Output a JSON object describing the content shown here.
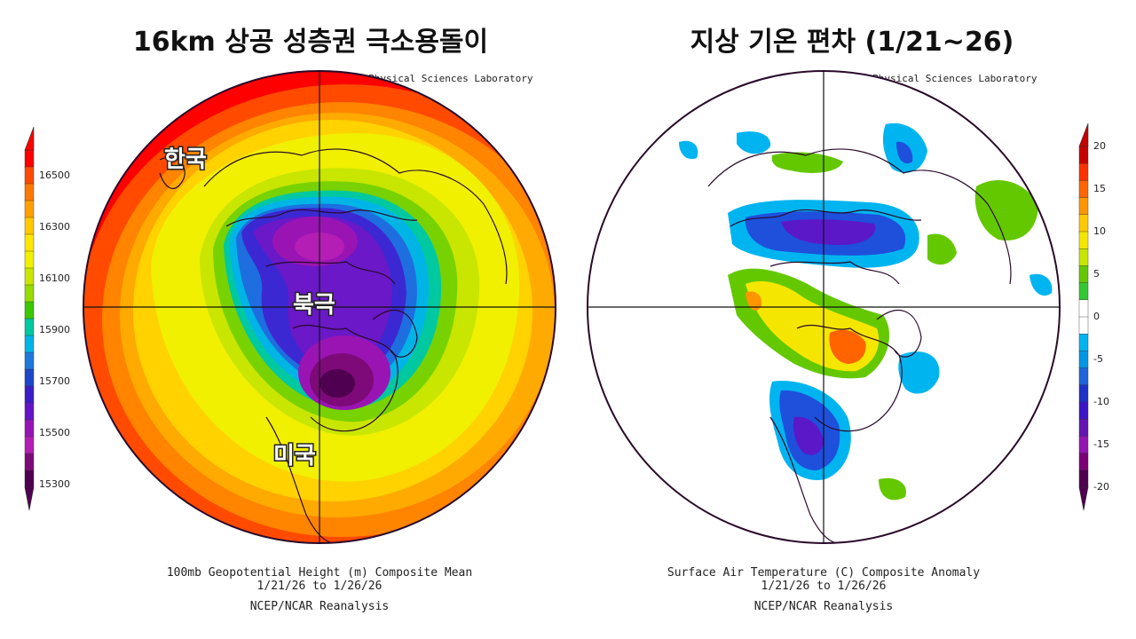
{
  "left_panel": {
    "title": "16km 상공 성층권 극소용돌이",
    "credit": "NOAA Physical Sciences Laboratory",
    "labels": {
      "korea": "한국",
      "arctic": "북극",
      "usa": "미국"
    },
    "colorbar_ticks": [
      "16500",
      "16300",
      "16100",
      "15900",
      "15700",
      "15500",
      "15300"
    ],
    "caption": {
      "line1": "100mb Geopotential Height (m) Composite Mean",
      "line2": "1/21/26  to 1/26/26",
      "line3": "NCEP/NCAR Reanalysis"
    }
  },
  "right_panel": {
    "title": "지상 기온 편차 (1/21~26)",
    "credit": "NOAA Physical Sciences Laboratory",
    "colorbar_ticks": [
      "20",
      "15",
      "10",
      "5",
      "0",
      "-5",
      "-10",
      "-15",
      "-20"
    ],
    "caption": {
      "line1": "Surface Air Temperature (C) Composite Anomaly",
      "line2": "1/21/26  to 1/26/26",
      "line3": "NCEP/NCAR Reanalysis"
    }
  },
  "colors": {
    "height_scale": [
      "#ff0000",
      "#ff4a00",
      "#ff7800",
      "#ffa000",
      "#ffc800",
      "#ffe600",
      "#f0f000",
      "#c8e600",
      "#96dc00",
      "#3cc800",
      "#00c8a0",
      "#00b4e6",
      "#1e78dc",
      "#1e46c8",
      "#3c1ec8",
      "#6414c8",
      "#9614b4",
      "#b41eb4",
      "#7d0a78",
      "#500050"
    ],
    "anomaly_scale": [
      "#c80000",
      "#ff3200",
      "#ff6400",
      "#ff9600",
      "#ffc800",
      "#f5e600",
      "#c8e600",
      "#64c800",
      "#32c832",
      "#ffffff",
      "#ffffff",
      "#00b4f0",
      "#0096e6",
      "#1e64dc",
      "#1e32c8",
      "#3c14c8",
      "#6414b4",
      "#9614b4",
      "#7d0078",
      "#500050"
    ],
    "map_outline": "#2a0a2a"
  }
}
